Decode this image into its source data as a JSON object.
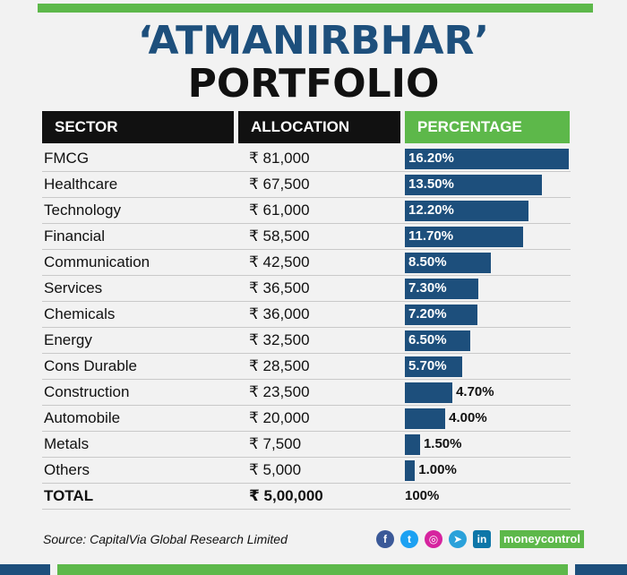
{
  "title_line1": "‘ATMANIRBHAR’",
  "title_line2": "PORTFOLIO",
  "headers": {
    "sector": "SECTOR",
    "allocation": "ALLOCATION",
    "percentage": "PERCENTAGE"
  },
  "chart_data": {
    "type": "bar",
    "orientation": "horizontal",
    "categories": [
      "FMCG",
      "Healthcare",
      "Technology",
      "Financial",
      "Communication",
      "Services",
      "Chemicals",
      "Energy",
      "Cons Durable",
      "Construction",
      "Automobile",
      "Metals",
      "Others"
    ],
    "allocation": [
      "₹ 81,000",
      "₹ 67,500",
      "₹ 61,000",
      "₹ 58,500",
      "₹ 42,500",
      "₹ 36,500",
      "₹ 36,000",
      "₹ 32,500",
      "₹ 28,500",
      "₹ 23,500",
      "₹ 20,000",
      "₹ 7,500",
      "₹ 5,000"
    ],
    "values": [
      16.2,
      13.5,
      12.2,
      11.7,
      8.5,
      7.3,
      7.2,
      6.5,
      5.7,
      4.7,
      4.0,
      1.5,
      1.0
    ],
    "value_labels": [
      "16.20%",
      "13.50%",
      "12.20%",
      "11.70%",
      "8.50%",
      "7.30%",
      "7.20%",
      "6.50%",
      "5.70%",
      "4.70%",
      "4.00%",
      "1.50%",
      "1.00%"
    ],
    "xlim": [
      0,
      16.2
    ]
  },
  "total": {
    "label": "TOTAL",
    "allocation": "₹ 5,00,000",
    "percentage": "100%"
  },
  "source": "Source: CapitalVia Global Research Limited",
  "social_icons": [
    "facebook-icon",
    "twitter-icon",
    "instagram-icon",
    "telegram-icon",
    "linkedin-icon"
  ],
  "brand": "moneycontrol",
  "colors": {
    "bar": "#1d4f7c",
    "accent": "#5db84a",
    "header": "#111111"
  }
}
